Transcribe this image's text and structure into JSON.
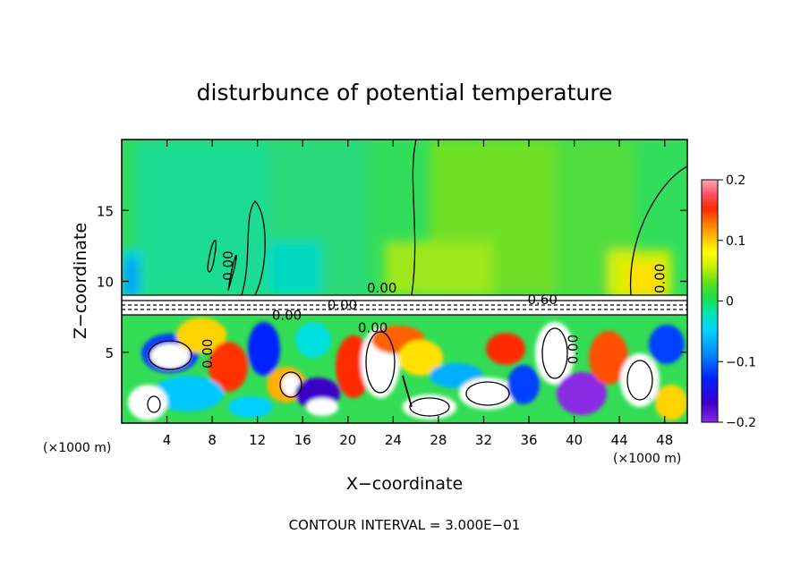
{
  "chart_data": {
    "type": "heatmap",
    "title": "disturbunce of potential temperature",
    "xlabel": "X−coordinate",
    "ylabel": "Z−coordinate",
    "x_unit": "(×1000 m)",
    "z_unit": "(×1000 m)",
    "xlim": [
      0,
      50
    ],
    "ylim": [
      0,
      20
    ],
    "x_ticks": [
      4,
      8,
      12,
      16,
      20,
      24,
      28,
      32,
      36,
      40,
      44,
      48
    ],
    "y_ticks": [
      5,
      10,
      15
    ],
    "colorbar": {
      "min": -0.2,
      "max": 0.2,
      "ticks": [
        0.2,
        0.1,
        0,
        -0.1,
        -0.2
      ],
      "tick_labels": [
        "0.2",
        "0.1",
        "0",
        "−0.1",
        "−0.2"
      ]
    },
    "contour_labels": [
      {
        "text": "0.00",
        "x": 9.8,
        "y": 11.1
      },
      {
        "text": "0.00",
        "x": 23.0,
        "y": 9.2
      },
      {
        "text": "0.60",
        "x": 37.2,
        "y": 8.4
      },
      {
        "text": "0.00",
        "x": 14.6,
        "y": 7.3
      },
      {
        "text": "0.00",
        "x": 19.5,
        "y": 8.0
      },
      {
        "text": "0.00",
        "x": 22.2,
        "y": 6.4
      },
      {
        "text": "0.00",
        "x": 8.0,
        "y": 4.9
      },
      {
        "text": "0.00",
        "x": 40.3,
        "y": 5.2
      },
      {
        "text": "0.00",
        "x": 48.0,
        "y": 10.2
      }
    ],
    "footer": "CONTOUR INTERVAL = 3.000E−01"
  }
}
